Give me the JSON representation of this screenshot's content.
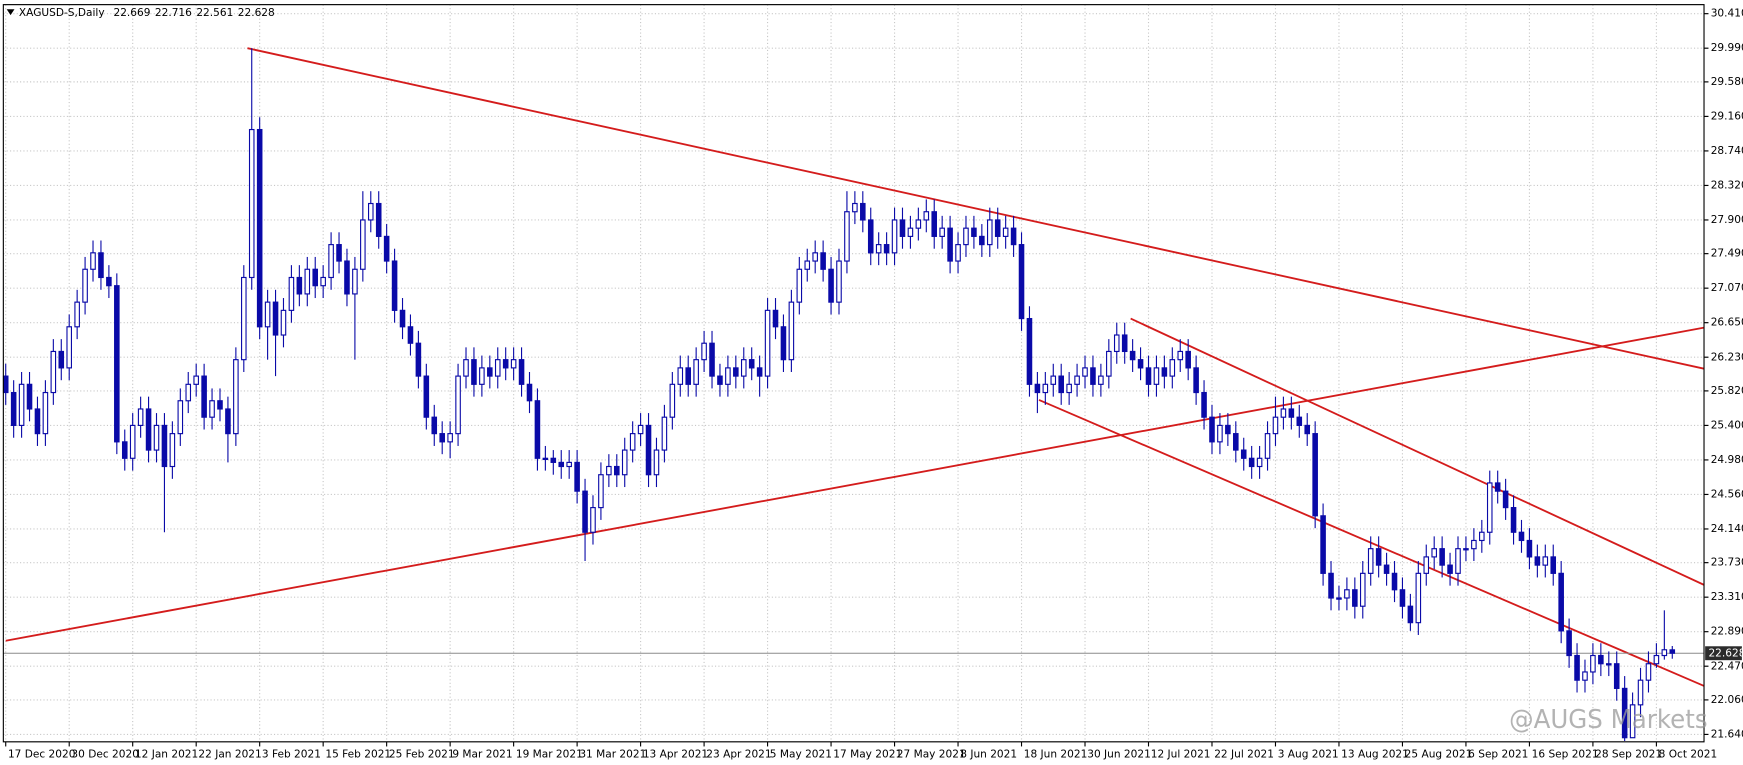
{
  "chart_data": {
    "type": "candlestick",
    "title": "XAGUSD-S,Daily",
    "watermark": "@AUGS Markets",
    "colors": {
      "bull_fill": "#ffffff",
      "bear_fill": "#0a0aa8",
      "wick": "#0a0aa8",
      "trendline": "#d41c1c",
      "price_line": "#8c8c8c",
      "grid": "#c8c8c8"
    },
    "grid": true,
    "xlim": [
      -0.3,
      214
    ],
    "ylim": [
      21.55,
      30.52
    ],
    "yticks": [
      {
        "value": 30.41,
        "label": "30.410"
      },
      {
        "value": 29.99,
        "label": "29.990"
      },
      {
        "value": 29.58,
        "label": "29.580"
      },
      {
        "value": 29.16,
        "label": "29.160"
      },
      {
        "value": 28.74,
        "label": "28.740"
      },
      {
        "value": 28.32,
        "label": "28.320"
      },
      {
        "value": 27.9,
        "label": "27.900"
      },
      {
        "value": 27.49,
        "label": "27.490"
      },
      {
        "value": 27.07,
        "label": "27.070"
      },
      {
        "value": 26.65,
        "label": "26.650"
      },
      {
        "value": 26.23,
        "label": "26.230"
      },
      {
        "value": 25.82,
        "label": "25.820"
      },
      {
        "value": 25.4,
        "label": "25.400"
      },
      {
        "value": 24.98,
        "label": "24.980"
      },
      {
        "value": 24.56,
        "label": "24.560"
      },
      {
        "value": 24.14,
        "label": "24.140"
      },
      {
        "value": 23.73,
        "label": "23.730"
      },
      {
        "value": 23.31,
        "label": "23.310"
      },
      {
        "value": 22.89,
        "label": "22.890"
      },
      {
        "value": 22.47,
        "label": "22.470"
      },
      {
        "value": 22.06,
        "label": "22.060"
      },
      {
        "value": 21.64,
        "label": "21.640"
      }
    ],
    "xticks": [
      {
        "value": 0,
        "label": "17 Dec 2020"
      },
      {
        "value": 8,
        "label": "30 Dec 2020"
      },
      {
        "value": 16,
        "label": "12 Jan 2021"
      },
      {
        "value": 24,
        "label": "22 Jan 2021"
      },
      {
        "value": 32,
        "label": "3 Feb 2021"
      },
      {
        "value": 40,
        "label": "15 Feb 2021"
      },
      {
        "value": 48,
        "label": "25 Feb 2021"
      },
      {
        "value": 56,
        "label": "9 Mar 2021"
      },
      {
        "value": 64,
        "label": "19 Mar 2021"
      },
      {
        "value": 72,
        "label": "31 Mar 2021"
      },
      {
        "value": 80,
        "label": "13 Apr 2021"
      },
      {
        "value": 88,
        "label": "23 Apr 2021"
      },
      {
        "value": 96,
        "label": "5 May 2021"
      },
      {
        "value": 104,
        "label": "17 May 2021"
      },
      {
        "value": 112,
        "label": "27 May 2021"
      },
      {
        "value": 120,
        "label": "8 Jun 2021"
      },
      {
        "value": 128,
        "label": "18 Jun 2021"
      },
      {
        "value": 136,
        "label": "30 Jun 2021"
      },
      {
        "value": 144,
        "label": "12 Jul 2021"
      },
      {
        "value": 152,
        "label": "22 Jul 2021"
      },
      {
        "value": 160,
        "label": "3 Aug 2021"
      },
      {
        "value": 168,
        "label": "13 Aug 2021"
      },
      {
        "value": 176,
        "label": "25 Aug 2021"
      },
      {
        "value": 184,
        "label": "6 Sep 2021"
      },
      {
        "value": 192,
        "label": "16 Sep 2021"
      },
      {
        "value": 200,
        "label": "28 Sep 2021"
      },
      {
        "value": 208,
        "label": "8 Oct 2021"
      }
    ],
    "open": [
      26.0,
      25.8,
      25.4,
      25.9,
      25.6,
      25.3,
      25.8,
      26.3,
      26.1,
      26.6,
      26.9,
      27.3,
      27.5,
      27.2,
      27.1,
      25.2,
      25.0,
      25.4,
      25.6,
      25.1,
      25.4,
      24.9,
      25.3,
      25.7,
      25.9,
      26.0,
      25.5,
      25.7,
      25.6,
      25.3,
      26.2,
      27.2,
      29.0,
      26.6,
      26.9,
      26.5,
      26.8,
      27.2,
      27.0,
      27.3,
      27.1,
      27.2,
      27.6,
      27.4,
      27.0,
      27.3,
      27.9,
      28.1,
      27.7,
      27.4,
      26.8,
      26.6,
      26.4,
      26.0,
      25.5,
      25.3,
      25.2,
      25.3,
      26.0,
      26.2,
      25.9,
      26.1,
      26.0,
      26.2,
      26.1,
      26.2,
      25.9,
      25.7,
      25.0,
      25.0,
      24.95,
      24.9,
      24.95,
      24.6,
      24.1,
      24.4,
      24.8,
      24.9,
      24.8,
      25.1,
      25.3,
      25.4,
      24.8,
      25.1,
      25.5,
      25.9,
      26.1,
      25.9,
      26.2,
      26.4,
      26.0,
      25.9,
      26.1,
      26.0,
      26.2,
      26.1,
      26.0,
      26.8,
      26.6,
      26.2,
      26.9,
      27.3,
      27.4,
      27.5,
      27.3,
      26.9,
      27.4,
      28.0,
      28.1,
      27.9,
      27.5,
      27.6,
      27.5,
      27.9,
      27.7,
      27.8,
      27.9,
      28.0,
      27.7,
      27.8,
      27.4,
      27.6,
      27.8,
      27.7,
      27.6,
      27.9,
      27.7,
      27.8,
      27.6,
      26.7,
      25.9,
      25.8,
      25.9,
      26.0,
      25.8,
      25.9,
      26.0,
      26.1,
      25.9,
      26.0,
      26.3,
      26.5,
      26.3,
      26.2,
      26.1,
      25.9,
      26.1,
      26.0,
      26.2,
      26.3,
      26.1,
      25.8,
      25.5,
      25.2,
      25.4,
      25.3,
      25.1,
      25.0,
      24.9,
      25.0,
      25.3,
      25.5,
      25.6,
      25.5,
      25.4,
      25.3,
      24.3,
      23.6,
      23.3,
      23.3,
      23.4,
      23.2,
      23.6,
      23.9,
      23.7,
      23.6,
      23.4,
      23.2,
      23.0,
      23.6,
      23.8,
      23.9,
      23.7,
      23.6,
      23.9,
      23.9,
      24.0,
      24.1,
      24.7,
      24.6,
      24.4,
      24.1,
      24.0,
      23.8,
      23.7,
      23.8,
      23.6,
      22.9,
      22.6,
      22.3,
      22.4,
      22.6,
      22.5,
      22.5,
      22.2,
      21.6,
      22.0,
      22.3,
      22.5,
      22.6,
      22.669
    ],
    "high": [
      26.15,
      25.95,
      26.05,
      26.05,
      25.75,
      25.95,
      26.45,
      26.45,
      26.75,
      27.05,
      27.45,
      27.65,
      27.65,
      27.35,
      27.25,
      25.35,
      25.55,
      25.75,
      25.75,
      25.55,
      25.55,
      25.45,
      25.85,
      26.05,
      26.15,
      26.15,
      25.85,
      25.85,
      25.75,
      26.35,
      27.35,
      29.99,
      29.15,
      27.05,
      27.05,
      26.95,
      27.35,
      27.35,
      27.45,
      27.45,
      27.35,
      27.75,
      27.75,
      27.55,
      27.45,
      28.25,
      28.25,
      28.25,
      27.85,
      27.55,
      26.95,
      26.75,
      26.55,
      26.15,
      25.65,
      25.45,
      25.45,
      26.15,
      26.35,
      26.35,
      26.25,
      26.25,
      26.35,
      26.35,
      26.35,
      26.35,
      26.05,
      25.85,
      25.15,
      25.1,
      25.1,
      25.1,
      25.1,
      24.75,
      24.55,
      24.95,
      25.05,
      25.05,
      25.25,
      25.45,
      25.55,
      25.55,
      25.25,
      25.65,
      26.05,
      26.25,
      26.25,
      26.35,
      26.55,
      26.55,
      26.15,
      26.25,
      26.25,
      26.35,
      26.35,
      26.25,
      26.95,
      26.95,
      26.75,
      27.05,
      27.45,
      27.55,
      27.65,
      27.65,
      27.45,
      27.55,
      28.25,
      28.25,
      28.25,
      28.05,
      27.75,
      27.75,
      28.05,
      28.05,
      27.95,
      28.05,
      28.15,
      28.15,
      27.95,
      27.95,
      27.75,
      27.95,
      27.95,
      27.85,
      28.05,
      28.05,
      27.95,
      27.95,
      27.75,
      26.85,
      26.05,
      26.05,
      26.15,
      26.15,
      26.05,
      26.15,
      26.25,
      26.25,
      26.15,
      26.45,
      26.65,
      26.65,
      26.45,
      26.35,
      26.25,
      26.25,
      26.25,
      26.35,
      26.45,
      26.45,
      26.25,
      25.95,
      25.65,
      25.55,
      25.55,
      25.45,
      25.25,
      25.15,
      25.15,
      25.45,
      25.75,
      25.75,
      25.75,
      25.65,
      25.55,
      25.45,
      24.45,
      23.75,
      23.45,
      23.55,
      23.55,
      23.75,
      24.05,
      24.05,
      23.85,
      23.75,
      23.55,
      23.35,
      23.75,
      23.95,
      24.05,
      24.05,
      23.85,
      24.05,
      24.05,
      24.15,
      24.25,
      24.85,
      24.85,
      24.75,
      24.55,
      24.25,
      24.15,
      23.95,
      23.95,
      23.95,
      23.75,
      23.05,
      22.75,
      22.55,
      22.75,
      22.75,
      22.65,
      22.65,
      22.35,
      22.15,
      22.45,
      22.65,
      22.75,
      23.15,
      22.716
    ],
    "low": [
      25.65,
      25.25,
      25.25,
      25.45,
      25.15,
      25.15,
      25.65,
      25.95,
      25.95,
      26.45,
      26.75,
      27.15,
      27.05,
      26.95,
      25.05,
      24.85,
      24.85,
      25.25,
      24.95,
      24.95,
      24.1,
      24.75,
      25.15,
      25.55,
      25.75,
      25.35,
      25.35,
      25.45,
      24.95,
      25.15,
      26.05,
      27.05,
      26.45,
      26.2,
      26.0,
      26.35,
      26.65,
      26.85,
      26.85,
      26.95,
      26.95,
      27.05,
      27.25,
      26.85,
      26.2,
      27.15,
      27.75,
      27.55,
      27.25,
      26.65,
      26.45,
      26.25,
      25.85,
      25.35,
      25.15,
      25.05,
      25.0,
      25.15,
      25.85,
      25.75,
      25.75,
      25.85,
      25.85,
      25.95,
      25.95,
      25.75,
      25.55,
      24.85,
      24.85,
      24.8,
      24.75,
      24.75,
      24.45,
      23.75,
      23.95,
      24.25,
      24.65,
      24.65,
      24.65,
      24.95,
      25.15,
      24.65,
      24.65,
      24.95,
      25.35,
      25.75,
      25.75,
      25.75,
      26.05,
      25.85,
      25.75,
      25.75,
      25.85,
      25.85,
      25.95,
      25.75,
      25.85,
      26.45,
      26.05,
      26.05,
      26.75,
      27.15,
      27.25,
      27.15,
      26.75,
      26.75,
      27.25,
      27.85,
      27.75,
      27.35,
      27.35,
      27.35,
      27.35,
      27.55,
      27.55,
      27.65,
      27.75,
      27.55,
      27.55,
      27.25,
      27.25,
      27.45,
      27.55,
      27.45,
      27.45,
      27.55,
      27.55,
      27.45,
      26.55,
      25.75,
      25.55,
      25.65,
      25.75,
      25.65,
      25.65,
      25.75,
      25.85,
      25.75,
      25.75,
      25.85,
      26.15,
      26.15,
      26.05,
      25.95,
      25.75,
      25.75,
      25.85,
      25.85,
      26.05,
      25.95,
      25.65,
      25.35,
      25.05,
      25.05,
      25.15,
      24.95,
      24.85,
      24.75,
      24.75,
      24.85,
      25.15,
      25.35,
      25.35,
      25.25,
      25.15,
      24.15,
      23.45,
      23.15,
      23.15,
      23.15,
      23.05,
      23.05,
      23.45,
      23.55,
      23.45,
      23.25,
      23.05,
      22.9,
      22.85,
      23.45,
      23.65,
      23.55,
      23.45,
      23.45,
      23.75,
      23.75,
      23.85,
      23.95,
      24.45,
      24.25,
      23.95,
      23.85,
      23.65,
      23.55,
      23.55,
      23.45,
      22.75,
      22.45,
      22.15,
      22.15,
      22.25,
      22.35,
      22.35,
      22.05,
      21.56,
      21.6,
      21.85,
      22.15,
      22.45,
      22.55,
      22.561
    ],
    "close": [
      25.8,
      25.4,
      25.9,
      25.6,
      25.3,
      25.8,
      26.3,
      26.1,
      26.6,
      26.9,
      27.3,
      27.5,
      27.2,
      27.1,
      25.2,
      25.0,
      25.4,
      25.6,
      25.1,
      25.4,
      24.9,
      25.3,
      25.7,
      25.9,
      26.0,
      25.5,
      25.7,
      25.6,
      25.3,
      26.2,
      27.2,
      29.0,
      26.6,
      26.9,
      26.5,
      26.8,
      27.2,
      27.0,
      27.3,
      27.1,
      27.2,
      27.6,
      27.4,
      27.0,
      27.3,
      27.9,
      28.1,
      27.7,
      27.4,
      26.8,
      26.6,
      26.4,
      26.0,
      25.5,
      25.3,
      25.2,
      25.3,
      26.0,
      26.2,
      25.9,
      26.1,
      26.0,
      26.2,
      26.1,
      26.2,
      25.9,
      25.7,
      25.0,
      25.0,
      24.95,
      24.9,
      24.95,
      24.6,
      24.1,
      24.4,
      24.8,
      24.9,
      24.8,
      25.1,
      25.3,
      25.4,
      24.8,
      25.1,
      25.5,
      25.9,
      26.1,
      25.9,
      26.2,
      26.4,
      26.0,
      25.9,
      26.1,
      26.0,
      26.2,
      26.1,
      26.0,
      26.8,
      26.6,
      26.2,
      26.9,
      27.3,
      27.4,
      27.5,
      27.3,
      26.9,
      27.4,
      28.0,
      28.1,
      27.9,
      27.5,
      27.6,
      27.5,
      27.9,
      27.7,
      27.8,
      27.9,
      28.0,
      27.7,
      27.8,
      27.4,
      27.6,
      27.8,
      27.7,
      27.6,
      27.9,
      27.7,
      27.8,
      27.6,
      26.7,
      25.9,
      25.8,
      25.9,
      26.0,
      25.8,
      25.9,
      26.0,
      26.1,
      25.9,
      26.0,
      26.3,
      26.5,
      26.3,
      26.2,
      26.1,
      25.9,
      26.1,
      26.0,
      26.2,
      26.3,
      26.1,
      25.8,
      25.5,
      25.2,
      25.4,
      25.3,
      25.1,
      25.0,
      24.9,
      25.0,
      25.3,
      25.5,
      25.6,
      25.5,
      25.4,
      25.3,
      24.3,
      23.6,
      23.3,
      23.3,
      23.4,
      23.2,
      23.6,
      23.9,
      23.7,
      23.6,
      23.4,
      23.2,
      23.0,
      23.6,
      23.8,
      23.9,
      23.7,
      23.6,
      23.9,
      23.9,
      24.0,
      24.1,
      24.7,
      24.6,
      24.4,
      24.1,
      24.0,
      23.8,
      23.7,
      23.8,
      23.6,
      22.9,
      22.6,
      22.3,
      22.4,
      22.6,
      22.5,
      22.5,
      22.2,
      21.6,
      22.0,
      22.3,
      22.5,
      22.6,
      22.67,
      22.628
    ],
    "trendlines": [
      {
        "x": [
          30.46,
          214
        ],
        "y": [
          29.99,
          26.09
        ]
      },
      {
        "x": [
          0,
          214
        ],
        "y": [
          22.78,
          26.59
        ]
      },
      {
        "x": [
          141.75,
          214
        ],
        "y": [
          26.7,
          23.46
        ]
      },
      {
        "x": [
          130.2,
          214
        ],
        "y": [
          25.71,
          22.23
        ]
      }
    ]
  }
}
